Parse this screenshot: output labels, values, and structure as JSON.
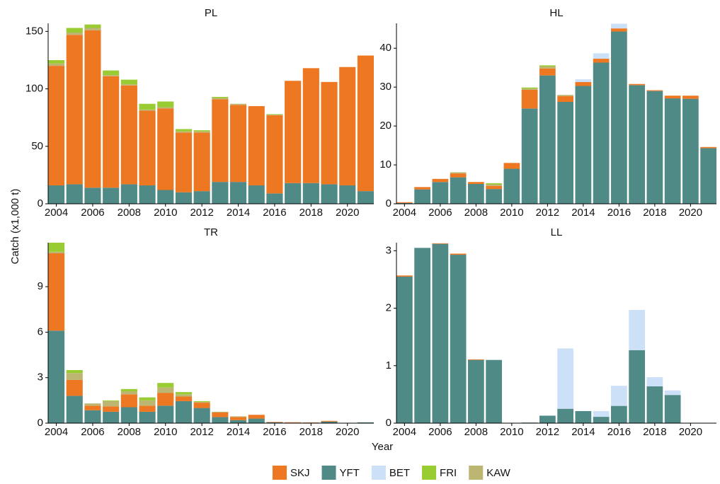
{
  "xlabel": "Year",
  "ylabel": "Catch (x1,000 t)",
  "chart_data": [
    {
      "type": "bar",
      "title": "PL",
      "x": [
        2004,
        2005,
        2006,
        2007,
        2008,
        2009,
        2010,
        2011,
        2012,
        2013,
        2014,
        2015,
        2016,
        2017,
        2018,
        2019,
        2020,
        2021
      ],
      "xlim": [
        2003.55,
        2021.45
      ],
      "xticks": [
        2004,
        2006,
        2008,
        2010,
        2012,
        2014,
        2016,
        2018,
        2020
      ],
      "ylim": [
        0,
        157
      ],
      "yticks": [
        0,
        50,
        100,
        150
      ],
      "series": [
        {
          "name": "SKJ",
          "color": "#EE7722",
          "values": [
            104,
            130,
            137,
            97,
            86,
            65,
            71,
            52,
            51,
            72,
            67,
            69,
            68,
            89,
            100,
            89,
            103,
            118
          ]
        },
        {
          "name": "YFT",
          "color": "#4F8A87",
          "values": [
            16,
            17,
            14,
            14,
            17,
            16,
            12,
            10,
            11,
            19,
            19,
            16,
            9,
            18,
            18,
            17,
            16,
            11
          ]
        },
        {
          "name": "BET",
          "color": "#CCE0F7",
          "values": [
            0,
            0,
            0,
            0,
            0,
            0,
            0,
            0,
            0,
            0,
            0,
            0,
            0,
            0,
            0,
            0,
            0,
            0
          ]
        },
        {
          "name": "FRI",
          "color": "#99CC33",
          "values": [
            3,
            4,
            3,
            4,
            4,
            5,
            5,
            2,
            1,
            1,
            0,
            0,
            0.5,
            0,
            0,
            0,
            0,
            0
          ]
        },
        {
          "name": "KAW",
          "color": "#BDB572",
          "values": [
            2,
            2,
            2,
            1,
            1,
            1,
            1,
            1,
            1,
            1,
            1,
            0,
            0.5,
            0,
            0,
            0,
            0,
            0
          ]
        }
      ]
    },
    {
      "type": "bar",
      "title": "HL",
      "x": [
        2004,
        2005,
        2006,
        2007,
        2008,
        2009,
        2010,
        2011,
        2012,
        2013,
        2014,
        2015,
        2016,
        2017,
        2018,
        2019,
        2020,
        2021
      ],
      "xlim": [
        2003.55,
        2021.45
      ],
      "xticks": [
        2004,
        2006,
        2008,
        2010,
        2012,
        2014,
        2016,
        2018,
        2020
      ],
      "ylim": [
        0,
        46.4
      ],
      "yticks": [
        0,
        10,
        20,
        30,
        40
      ],
      "series": [
        {
          "name": "SKJ",
          "color": "#EE7722",
          "values": [
            0.2,
            0.6,
            0.8,
            1.0,
            0.5,
            0.8,
            1.5,
            4.8,
            1.8,
            1.5,
            1.0,
            1.0,
            0.8,
            0.3,
            0.2,
            0.7,
            0.8,
            0.3
          ]
        },
        {
          "name": "YFT",
          "color": "#4F8A87",
          "values": [
            0.2,
            3.7,
            5.6,
            6.8,
            5.1,
            3.8,
            9.0,
            24.5,
            33,
            26.2,
            30.3,
            36.3,
            44.3,
            30.5,
            29.0,
            27.1,
            27.0,
            14.3
          ]
        },
        {
          "name": "BET",
          "color": "#CCE0F7",
          "values": [
            0,
            0,
            0,
            0,
            0,
            0,
            0,
            0,
            0,
            0,
            0.7,
            1.4,
            1.2,
            0,
            0,
            0,
            0,
            0
          ]
        },
        {
          "name": "FRI",
          "color": "#99CC33",
          "values": [
            0,
            0,
            0,
            0,
            0,
            0.3,
            0,
            0.3,
            0.3,
            0,
            0,
            0,
            0,
            0,
            0,
            0,
            0,
            0
          ]
        },
        {
          "name": "KAW",
          "color": "#BDB572",
          "values": [
            0,
            0,
            0,
            0.3,
            0,
            0.4,
            0,
            0.3,
            0.5,
            0.3,
            0,
            0,
            0,
            0,
            0,
            0,
            0,
            0
          ]
        }
      ]
    },
    {
      "type": "bar",
      "title": "TR",
      "x": [
        2004,
        2005,
        2006,
        2007,
        2008,
        2009,
        2010,
        2011,
        2012,
        2013,
        2014,
        2015,
        2016,
        2017,
        2018,
        2019,
        2020,
        2021
      ],
      "xlim": [
        2003.55,
        2021.45
      ],
      "xticks": [
        2004,
        2006,
        2008,
        2010,
        2012,
        2014,
        2016,
        2018,
        2020
      ],
      "ylim": [
        0,
        11.9
      ],
      "yticks": [
        0,
        3,
        6,
        9
      ],
      "series": [
        {
          "name": "SKJ",
          "color": "#EE7722",
          "values": [
            5.1,
            1.05,
            0.3,
            0.35,
            0.85,
            0.4,
            0.85,
            0.3,
            0.35,
            0.3,
            0.2,
            0.25,
            0.03,
            0.03,
            0.02,
            0.05,
            0,
            0
          ]
        },
        {
          "name": "YFT",
          "color": "#4F8A87",
          "values": [
            6.1,
            1.8,
            0.85,
            0.75,
            1.05,
            0.75,
            1.15,
            1.45,
            1.0,
            0.4,
            0.2,
            0.3,
            0.05,
            0.03,
            0.03,
            0.1,
            0.02,
            0.05
          ]
        },
        {
          "name": "BET",
          "color": "#CCE0F7",
          "values": [
            0,
            0,
            0,
            0,
            0,
            0,
            0,
            0,
            0,
            0,
            0,
            0,
            0,
            0,
            0,
            0,
            0,
            0
          ]
        },
        {
          "name": "FRI",
          "color": "#99CC33",
          "values": [
            0.6,
            0.2,
            0,
            0.05,
            0.15,
            0.2,
            0.3,
            0.15,
            0.05,
            0,
            0,
            0,
            0,
            0,
            0,
            0,
            0,
            0
          ]
        },
        {
          "name": "KAW",
          "color": "#BDB572",
          "values": [
            0.1,
            0.45,
            0.15,
            0.35,
            0.2,
            0.35,
            0.35,
            0.15,
            0.05,
            0.05,
            0.05,
            0,
            0,
            0,
            0,
            0,
            0,
            0
          ]
        }
      ]
    },
    {
      "type": "bar",
      "title": "LL",
      "x": [
        2004,
        2005,
        2006,
        2007,
        2008,
        2009,
        2010,
        2011,
        2012,
        2013,
        2014,
        2015,
        2016,
        2017,
        2018,
        2019,
        2020,
        2021
      ],
      "xlim": [
        2003.55,
        2021.45
      ],
      "xticks": [
        2004,
        2006,
        2008,
        2010,
        2012,
        2014,
        2016,
        2018,
        2020
      ],
      "ylim": [
        0,
        3.14
      ],
      "yticks": [
        0,
        1,
        2,
        3
      ],
      "series": [
        {
          "name": "SKJ",
          "color": "#EE7722",
          "values": [
            0.02,
            0,
            0.01,
            0.02,
            0.01,
            0,
            0,
            0,
            0,
            0,
            0,
            0,
            0,
            0,
            0,
            0,
            0,
            0
          ]
        },
        {
          "name": "YFT",
          "color": "#4F8A87",
          "values": [
            2.55,
            3.05,
            3.12,
            2.93,
            1.1,
            1.1,
            0,
            0.01,
            0.13,
            0.25,
            0.21,
            0.11,
            0.3,
            1.27,
            0.64,
            0.49,
            0,
            0
          ]
        },
        {
          "name": "BET",
          "color": "#CCE0F7",
          "values": [
            0,
            0,
            0,
            0,
            0,
            0,
            0,
            0,
            0,
            1.05,
            0,
            0.1,
            0.35,
            0.7,
            0.16,
            0.08,
            0,
            0
          ]
        },
        {
          "name": "FRI",
          "color": "#99CC33",
          "values": [
            0,
            0,
            0,
            0,
            0,
            0,
            0,
            0,
            0,
            0,
            0,
            0,
            0,
            0,
            0,
            0,
            0,
            0
          ]
        },
        {
          "name": "KAW",
          "color": "#BDB572",
          "values": [
            0,
            0,
            0,
            0,
            0,
            0,
            0,
            0,
            0,
            0,
            0,
            0,
            0,
            0,
            0,
            0,
            0,
            0
          ]
        }
      ]
    }
  ]
}
